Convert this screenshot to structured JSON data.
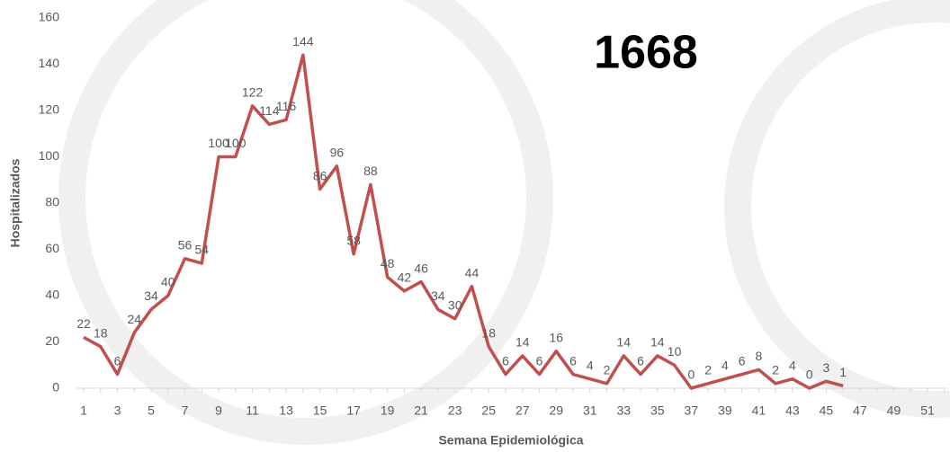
{
  "chart_data": {
    "type": "line",
    "annotation": "1668",
    "x_label": "Semana Epidemiológica",
    "y_label": "Hospitalizados",
    "categories": [
      "1",
      null,
      "3",
      null,
      "5",
      null,
      "7",
      null,
      "9",
      null,
      "11",
      null,
      "13",
      null,
      "15",
      null,
      "17",
      null,
      "19",
      null,
      "21",
      null,
      "23",
      null,
      "25",
      null,
      "27",
      null,
      "29",
      null,
      "31",
      null,
      "33",
      null,
      "35",
      null,
      "37",
      null,
      "39",
      null,
      "41",
      null,
      "43",
      null,
      "45",
      null,
      "47",
      null,
      "49",
      null,
      "51",
      null
    ],
    "series": [
      {
        "name": "Hospitalizados",
        "color": "#c0504d",
        "values": [
          22,
          18,
          6,
          24,
          34,
          40,
          56,
          54,
          100,
          100,
          122,
          114,
          116,
          144,
          86,
          96,
          58,
          88,
          48,
          42,
          46,
          34,
          30,
          44,
          18,
          6,
          14,
          6,
          16,
          6,
          4,
          2,
          14,
          6,
          14,
          10,
          0,
          2,
          4,
          6,
          8,
          2,
          4,
          0,
          3,
          1,
          null,
          null,
          null,
          null,
          null,
          null
        ]
      }
    ],
    "ylim": [
      0,
      160
    ],
    "yticks": [
      0,
      20,
      40,
      60,
      80,
      100,
      120,
      140,
      160
    ]
  }
}
